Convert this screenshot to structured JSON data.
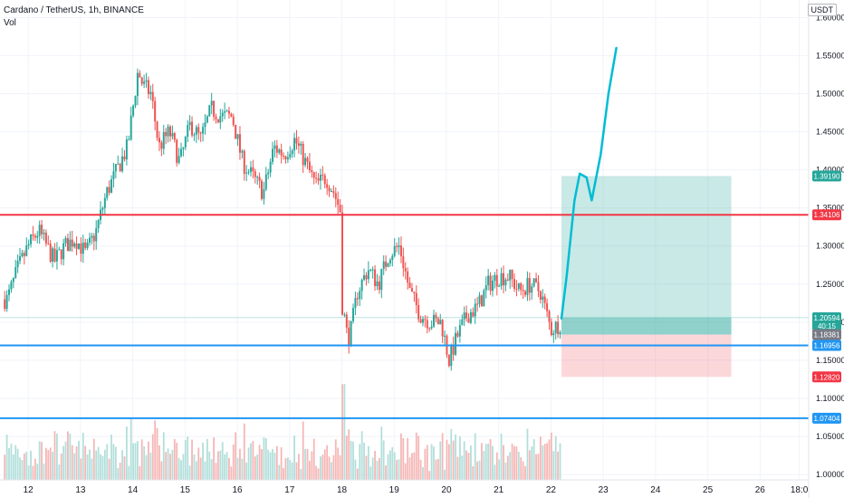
{
  "header": {
    "title": "Cardano / TetherUS, 1h, BINANCE",
    "volume_label": "Vol",
    "currency_button": "USDT"
  },
  "colors": {
    "up": "#26a69a",
    "down": "#ef5350",
    "vol_up": "#b2dfdb",
    "vol_down": "#f5b7b6",
    "resistance": "#f23645",
    "support": "#2196f3",
    "target_zone": "#26a69a",
    "stop_zone": "#f23645",
    "projection": "#00bcd4",
    "text": "#131722",
    "grid": "#f0f3fa"
  },
  "chart_data": {
    "type": "candlestick",
    "y_tick_labels": [
      "1.60000",
      "1.55000",
      "1.50000",
      "1.45000",
      "1.40000",
      "1.35000",
      "1.30000",
      "1.25000",
      "1.20000",
      "1.15000",
      "1.10000",
      "1.05000",
      "1.00000"
    ],
    "y_ticks": [
      1.6,
      1.55,
      1.5,
      1.45,
      1.4,
      1.35,
      1.3,
      1.25,
      1.2,
      1.15,
      1.1,
      1.05,
      1.0
    ],
    "ylim": [
      0.993,
      1.623
    ],
    "x_ticks": [
      {
        "label": "12",
        "day": 12
      },
      {
        "label": "13",
        "day": 13
      },
      {
        "label": "14",
        "day": 14
      },
      {
        "label": "15",
        "day": 15
      },
      {
        "label": "16",
        "day": 16
      },
      {
        "label": "17",
        "day": 17
      },
      {
        "label": "18",
        "day": 18
      },
      {
        "label": "19",
        "day": 19
      },
      {
        "label": "20",
        "day": 20
      },
      {
        "label": "21",
        "day": 21
      },
      {
        "label": "22",
        "day": 22
      },
      {
        "label": "23",
        "day": 23
      },
      {
        "label": "24",
        "day": 24
      },
      {
        "label": "25",
        "day": 25
      },
      {
        "label": "26",
        "day": 26
      },
      {
        "label": "18:0",
        "day": 26.75
      }
    ],
    "xlim_days": [
      11.46,
      26.93
    ],
    "horizontal_lines": [
      {
        "price": 1.34106,
        "label": "1.34106",
        "color": "#f23645"
      },
      {
        "price": 1.16956,
        "label": "1.16956",
        "color": "#2196f3"
      },
      {
        "price": 1.07404,
        "label": "1.07404",
        "color": "#2196f3"
      }
    ],
    "price_tags": [
      {
        "price": 1.3919,
        "label": "1.39190",
        "bg": "#26a69a"
      },
      {
        "price": 1.20594,
        "label": "1.20594",
        "sub": "40:15",
        "bg": "#26a69a"
      },
      {
        "price": 1.18381,
        "label": "1.18381",
        "bg": "#787b86"
      },
      {
        "price": 1.1282,
        "label": "1.12820",
        "bg": "#f23645"
      }
    ],
    "position": {
      "entry": 1.18381,
      "target": 1.3919,
      "stop": 1.1282,
      "start_day": 22.2,
      "end_day": 25.45
    },
    "current_price": 1.20594,
    "volume_range": [
      0,
      260
    ],
    "path_days": [
      11.6,
      11.8,
      12.0,
      12.2,
      12.5,
      12.7,
      12.9,
      13.1,
      13.3,
      13.5,
      13.7,
      13.9,
      14.1,
      14.2,
      14.35,
      14.5,
      14.7,
      14.9,
      15.1,
      15.3,
      15.5,
      15.7,
      15.9,
      16.1,
      16.3,
      16.5,
      16.7,
      16.9,
      17.1,
      17.3,
      17.5,
      17.7,
      17.85,
      18.0,
      18.06,
      18.15,
      18.3,
      18.5,
      18.7,
      18.9,
      19.1,
      19.3,
      19.5,
      19.7,
      19.9,
      20.05,
      20.2,
      20.4,
      20.6,
      20.8,
      21.0,
      21.2,
      21.4,
      21.6,
      21.8,
      22.0,
      22.2
    ],
    "path_prices": [
      1.23,
      1.27,
      1.3,
      1.32,
      1.28,
      1.3,
      1.31,
      1.29,
      1.32,
      1.37,
      1.4,
      1.43,
      1.53,
      1.51,
      1.5,
      1.43,
      1.45,
      1.41,
      1.46,
      1.44,
      1.48,
      1.47,
      1.47,
      1.41,
      1.39,
      1.37,
      1.43,
      1.42,
      1.44,
      1.41,
      1.38,
      1.39,
      1.37,
      1.34,
      1.19,
      1.18,
      1.24,
      1.27,
      1.25,
      1.29,
      1.3,
      1.24,
      1.21,
      1.2,
      1.2,
      1.15,
      1.18,
      1.21,
      1.22,
      1.25,
      1.26,
      1.26,
      1.24,
      1.25,
      1.24,
      1.19,
      1.2
    ],
    "projection_days": [
      22.2,
      22.3,
      22.45,
      22.55,
      22.68,
      22.78,
      22.95,
      23.1,
      23.25
    ],
    "projection_prices": [
      1.205,
      1.26,
      1.36,
      1.395,
      1.39,
      1.36,
      1.42,
      1.5,
      1.56
    ]
  }
}
